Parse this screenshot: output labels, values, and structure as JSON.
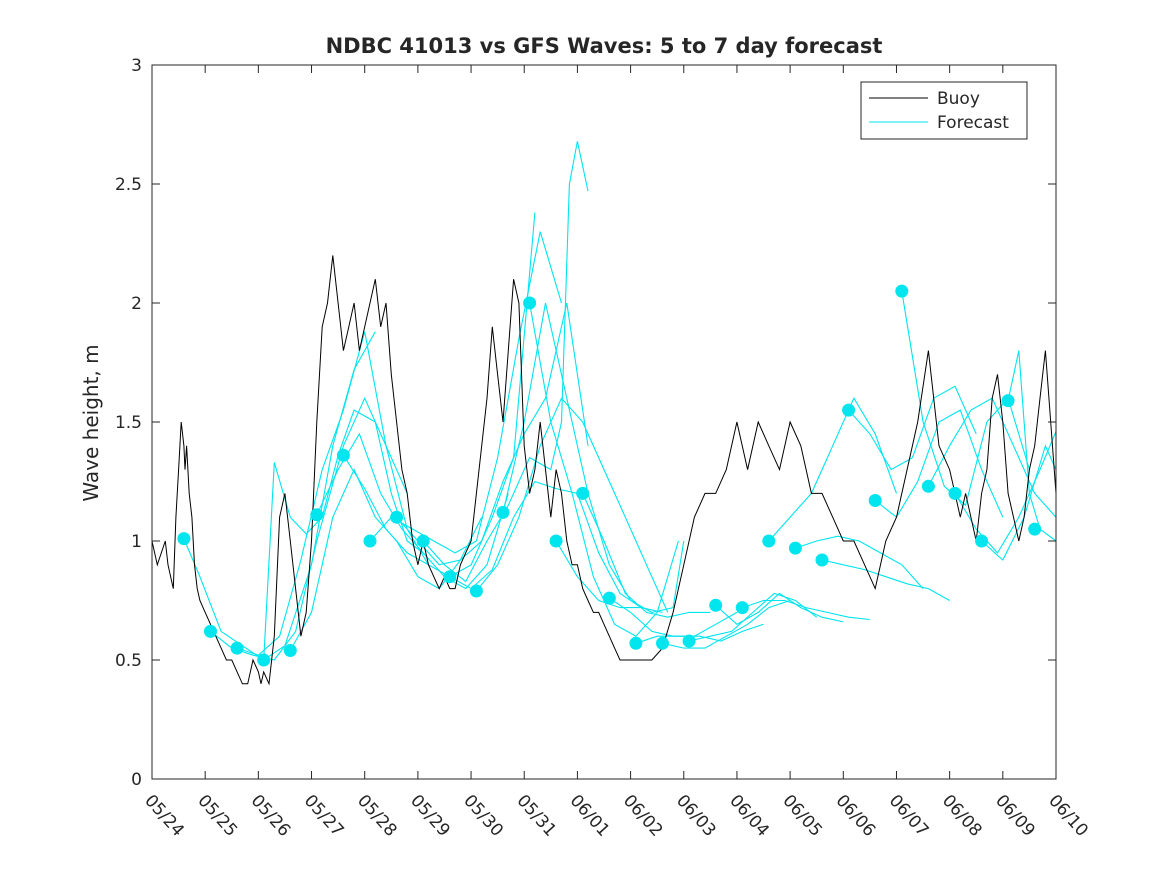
{
  "chart_data": {
    "type": "line",
    "title": "NDBC 41013 vs GFS Waves: 5 to 7 day forecast",
    "ylabel": "Wave height, m",
    "xlabel": "",
    "xlim": [
      "05/24",
      "06/10"
    ],
    "ylim": [
      0,
      3
    ],
    "yticks": [
      0,
      0.5,
      1,
      1.5,
      2,
      2.5,
      3
    ],
    "xtick_labels": [
      "05/24",
      "05/25",
      "05/26",
      "05/27",
      "05/28",
      "05/29",
      "05/30",
      "05/31",
      "06/01",
      "06/02",
      "06/03",
      "06/04",
      "06/05",
      "06/06",
      "06/07",
      "06/08",
      "06/09",
      "06/10"
    ],
    "legend": {
      "position": "top-right",
      "entries": [
        "Buoy",
        "Forecast"
      ]
    },
    "colors": {
      "buoy": "#000000",
      "forecast": "#00e5ee"
    },
    "buoy": {
      "name": "Buoy",
      "x": [
        0.0,
        0.1,
        0.25,
        0.3,
        0.4,
        0.45,
        0.5,
        0.55,
        0.6,
        0.62,
        0.65,
        0.7,
        0.75,
        0.8,
        0.85,
        0.9,
        1.0,
        1.1,
        1.2,
        1.3,
        1.4,
        1.5,
        1.6,
        1.7,
        1.8,
        1.9,
        2.0,
        2.05,
        2.1,
        2.2,
        2.3,
        2.4,
        2.5,
        2.6,
        2.7,
        2.8,
        2.9,
        3.0,
        3.1,
        3.2,
        3.3,
        3.4,
        3.5,
        3.6,
        3.7,
        3.8,
        3.9,
        4.0,
        4.1,
        4.2,
        4.3,
        4.4,
        4.5,
        4.6,
        4.7,
        4.8,
        4.9,
        5.0,
        5.1,
        5.2,
        5.3,
        5.4,
        5.5,
        5.6,
        5.7,
        5.8,
        5.9,
        6.0,
        6.1,
        6.2,
        6.3,
        6.4,
        6.5,
        6.6,
        6.7,
        6.8,
        6.9,
        7.0,
        7.1,
        7.2,
        7.3,
        7.4,
        7.5,
        7.6,
        7.7,
        7.8,
        7.9,
        8.0,
        8.1,
        8.2,
        8.3,
        8.4,
        8.5,
        8.6,
        8.7,
        8.8,
        8.9,
        9.0,
        9.2,
        9.4,
        9.6,
        9.8,
        10.0,
        10.2,
        10.4,
        10.6,
        10.8,
        11.0,
        11.2,
        11.4,
        11.6,
        11.8,
        12.0,
        12.2,
        12.4,
        12.6,
        12.8,
        13.0,
        13.2,
        13.4,
        13.6,
        13.8,
        14.0,
        14.2,
        14.4,
        14.6,
        14.8,
        15.0,
        15.1,
        15.2,
        15.3,
        15.4,
        15.5,
        15.6,
        15.7,
        15.8,
        15.9,
        16.0,
        16.1,
        16.2,
        16.3,
        16.4,
        16.5,
        16.6,
        16.7,
        16.8,
        16.9,
        17.0
      ],
      "y": [
        1.0,
        0.9,
        1.0,
        0.9,
        0.8,
        1.1,
        1.3,
        1.5,
        1.4,
        1.3,
        1.4,
        1.2,
        1.1,
        0.9,
        0.8,
        0.75,
        0.7,
        0.65,
        0.6,
        0.55,
        0.5,
        0.5,
        0.45,
        0.4,
        0.4,
        0.5,
        0.45,
        0.4,
        0.45,
        0.4,
        0.6,
        1.1,
        1.2,
        1.0,
        0.8,
        0.6,
        0.7,
        1.0,
        1.5,
        1.9,
        2.0,
        2.2,
        2.0,
        1.8,
        1.9,
        2.0,
        1.8,
        1.9,
        2.0,
        2.1,
        1.9,
        2.0,
        1.7,
        1.5,
        1.3,
        1.2,
        1.0,
        0.9,
        1.0,
        0.9,
        0.85,
        0.8,
        0.85,
        0.8,
        0.8,
        0.9,
        0.95,
        1.0,
        1.2,
        1.4,
        1.6,
        1.9,
        1.7,
        1.5,
        1.8,
        2.1,
        2.0,
        1.4,
        1.2,
        1.3,
        1.5,
        1.3,
        1.1,
        1.3,
        1.2,
        1.0,
        0.9,
        0.9,
        0.8,
        0.75,
        0.7,
        0.7,
        0.65,
        0.6,
        0.55,
        0.5,
        0.5,
        0.5,
        0.5,
        0.5,
        0.55,
        0.7,
        0.9,
        1.1,
        1.2,
        1.2,
        1.3,
        1.5,
        1.3,
        1.5,
        1.4,
        1.3,
        1.5,
        1.4,
        1.2,
        1.2,
        1.1,
        1.0,
        1.0,
        0.9,
        0.8,
        1.0,
        1.1,
        1.3,
        1.5,
        1.8,
        1.4,
        1.3,
        1.2,
        1.1,
        1.2,
        1.1,
        1.0,
        1.2,
        1.3,
        1.6,
        1.7,
        1.5,
        1.2,
        1.1,
        1.0,
        1.1,
        1.3,
        1.4,
        1.6,
        1.8,
        1.5,
        1.2
      ]
    },
    "forecast_runs": [
      {
        "x": [
          0.6,
          0.9,
          1.3,
          1.7,
          2.1,
          2.5,
          3.0,
          3.4,
          3.8,
          4.2
        ],
        "y": [
          1.01,
          0.85,
          0.62,
          0.56,
          0.5,
          0.56,
          0.9,
          1.4,
          1.72,
          1.88
        ]
      },
      {
        "x": [
          1.1,
          1.5,
          1.9,
          2.3,
          2.7,
          3.1,
          3.6,
          4.0,
          4.4,
          4.8
        ],
        "y": [
          0.62,
          0.55,
          0.52,
          0.5,
          0.62,
          1.0,
          1.4,
          1.6,
          1.4,
          1.2
        ]
      },
      {
        "x": [
          1.6,
          2.0,
          2.4,
          2.8,
          3.2,
          3.6,
          4.0,
          4.4,
          4.8,
          5.2
        ],
        "y": [
          0.55,
          0.52,
          0.6,
          0.92,
          1.3,
          1.55,
          1.88,
          1.4,
          1.05,
          0.9
        ]
      },
      {
        "x": [
          2.1,
          2.3,
          2.6,
          2.9,
          3.2,
          3.5,
          3.8,
          4.2,
          4.5,
          4.8,
          5.1
        ],
        "y": [
          0.5,
          1.33,
          1.1,
          1.03,
          1.1,
          1.36,
          1.55,
          1.5,
          1.2,
          1.0,
          0.95
        ]
      },
      {
        "x": [
          2.6,
          3.0,
          3.4,
          3.8,
          4.2,
          4.6,
          5.0,
          5.4,
          5.8,
          6.2
        ],
        "y": [
          0.54,
          0.7,
          1.1,
          1.3,
          1.1,
          1.0,
          0.85,
          0.8,
          0.92,
          1.1
        ]
      },
      {
        "x": [
          3.1,
          3.5,
          3.9,
          4.3,
          4.7,
          5.1,
          5.5,
          5.9,
          6.3,
          6.7
        ],
        "y": [
          1.11,
          1.3,
          1.45,
          1.2,
          1.05,
          0.95,
          0.85,
          0.8,
          0.9,
          1.2
        ]
      },
      {
        "x": [
          3.6,
          4.0,
          4.4,
          4.8,
          5.2,
          5.6,
          6.0,
          6.4,
          6.8,
          7.2
        ],
        "y": [
          1.36,
          1.22,
          1.05,
          0.95,
          0.9,
          0.85,
          0.9,
          1.1,
          1.35,
          2.38
        ]
      },
      {
        "x": [
          4.1,
          4.5,
          4.9,
          5.3,
          5.7,
          6.1,
          6.5,
          6.9,
          7.3,
          7.7
        ],
        "y": [
          1.0,
          1.1,
          1.05,
          1.0,
          0.95,
          1.0,
          1.35,
          1.85,
          2.3,
          2.0
        ]
      },
      {
        "x": [
          4.6,
          5.0,
          5.4,
          5.8,
          6.2,
          6.6,
          7.0,
          7.4,
          7.8,
          8.2
        ],
        "y": [
          1.1,
          1.0,
          0.9,
          0.92,
          1.0,
          1.25,
          1.45,
          1.6,
          2.0,
          1.4
        ]
      },
      {
        "x": [
          5.1,
          5.5,
          5.9,
          6.3,
          6.7,
          7.1,
          7.5,
          7.7,
          7.85,
          8.0,
          8.2
        ],
        "y": [
          1.0,
          0.9,
          0.83,
          1.0,
          1.15,
          1.35,
          1.3,
          1.5,
          2.5,
          2.68,
          2.47
        ]
      },
      {
        "x": [
          5.6,
          6.0,
          6.4,
          6.8,
          7.2,
          7.6,
          8.0,
          8.4,
          8.8,
          9.2
        ],
        "y": [
          0.85,
          0.8,
          0.88,
          1.1,
          1.25,
          1.22,
          1.2,
          0.95,
          0.78,
          0.72
        ]
      },
      {
        "x": [
          6.1,
          6.5,
          6.9,
          7.3,
          7.7,
          8.1,
          8.5,
          8.9,
          9.3,
          9.7
        ],
        "y": [
          0.79,
          0.9,
          1.1,
          1.4,
          1.6,
          1.5,
          1.3,
          1.1,
          0.9,
          0.7
        ]
      },
      {
        "x": [
          6.6,
          7.0,
          7.4,
          7.8,
          8.2,
          8.6,
          9.0,
          9.4,
          9.8,
          10.0
        ],
        "y": [
          1.12,
          1.5,
          2.0,
          1.6,
          1.2,
          0.9,
          0.75,
          0.7,
          0.72,
          1.0
        ]
      },
      {
        "x": [
          7.1,
          7.5,
          7.9,
          8.3,
          8.7,
          9.1,
          9.5,
          9.9
        ],
        "y": [
          2.0,
          1.5,
          1.2,
          0.85,
          0.65,
          0.6,
          0.7,
          1.0
        ]
      },
      {
        "x": [
          7.6,
          8.0,
          8.4,
          8.8,
          9.2,
          9.6
        ],
        "y": [
          1.0,
          0.85,
          0.75,
          0.72,
          0.72,
          0.7
        ]
      },
      {
        "x": [
          8.1,
          8.5,
          8.9,
          9.3,
          9.7,
          10.1,
          10.5
        ],
        "y": [
          1.2,
          1.0,
          0.78,
          0.7,
          0.68,
          0.7,
          0.7
        ]
      },
      {
        "x": [
          8.6,
          9.0,
          9.4,
          9.8,
          10.2,
          10.6,
          11.0
        ],
        "y": [
          0.76,
          0.7,
          0.62,
          0.6,
          0.6,
          0.65,
          0.7
        ]
      },
      {
        "x": [
          9.1,
          9.5,
          9.9,
          10.3,
          10.7,
          11.1,
          11.5
        ],
        "y": [
          0.57,
          0.6,
          0.6,
          0.6,
          0.58,
          0.62,
          0.65
        ]
      },
      {
        "x": [
          9.6,
          10.0,
          10.4,
          10.8,
          11.2,
          11.6,
          12.0
        ],
        "y": [
          0.57,
          0.55,
          0.55,
          0.6,
          0.65,
          0.72,
          0.75
        ]
      },
      {
        "x": [
          10.1,
          10.5,
          10.9,
          11.3,
          11.7,
          12.1,
          12.5
        ],
        "y": [
          0.58,
          0.6,
          0.62,
          0.7,
          0.78,
          0.75,
          0.68
        ]
      },
      {
        "x": [
          10.6,
          11.0,
          11.4,
          11.8,
          12.2,
          12.6,
          13.0
        ],
        "y": [
          0.73,
          0.65,
          0.7,
          0.78,
          0.72,
          0.68,
          0.66
        ]
      },
      {
        "x": [
          11.1,
          11.5,
          11.9,
          12.3,
          12.7,
          13.1,
          13.5
        ],
        "y": [
          0.72,
          0.75,
          0.75,
          0.72,
          0.7,
          0.68,
          0.67
        ]
      },
      {
        "x": [
          11.6,
          12.0,
          12.4,
          12.8,
          13.2,
          13.6,
          14.0
        ],
        "y": [
          1.0,
          1.1,
          1.2,
          1.4,
          1.6,
          1.45,
          1.2
        ]
      },
      {
        "x": [
          12.1,
          12.5,
          12.9,
          13.3,
          13.7,
          14.1,
          14.5
        ],
        "y": [
          0.97,
          1.0,
          1.02,
          1.0,
          0.95,
          0.9,
          0.8
        ]
      },
      {
        "x": [
          12.6,
          13.0,
          13.4,
          13.8,
          14.2,
          14.6,
          15.0
        ],
        "y": [
          0.92,
          0.9,
          0.88,
          0.85,
          0.82,
          0.8,
          0.75
        ]
      },
      {
        "x": [
          13.1,
          13.5,
          13.9,
          14.3,
          14.7,
          15.1,
          15.5
        ],
        "y": [
          1.55,
          1.45,
          1.3,
          1.35,
          1.6,
          1.65,
          1.45
        ]
      },
      {
        "x": [
          13.6,
          14.0,
          14.4,
          14.8,
          15.2,
          15.6,
          16.0
        ],
        "y": [
          1.17,
          1.1,
          1.25,
          1.5,
          1.55,
          1.3,
          1.1
        ]
      },
      {
        "x": [
          14.1,
          14.5,
          14.9,
          15.3,
          15.7,
          16.1,
          16.5
        ],
        "y": [
          2.05,
          1.5,
          1.23,
          1.15,
          1.5,
          1.6,
          1.3
        ]
      },
      {
        "x": [
          14.6,
          15.0,
          15.4,
          15.8,
          16.2,
          16.6,
          17.0
        ],
        "y": [
          1.23,
          1.4,
          1.55,
          1.6,
          1.4,
          1.2,
          1.1
        ]
      },
      {
        "x": [
          15.1,
          15.5,
          15.9,
          16.3,
          16.7,
          17.0
        ],
        "y": [
          1.2,
          1.05,
          0.95,
          1.1,
          1.3,
          1.46
        ]
      },
      {
        "x": [
          15.6,
          16.0,
          16.4,
          16.8,
          17.0
        ],
        "y": [
          1.0,
          0.92,
          1.1,
          1.4,
          1.3
        ]
      },
      {
        "x": [
          16.1,
          16.3,
          16.5,
          16.7,
          17.0
        ],
        "y": [
          1.59,
          1.8,
          1.2,
          1.05,
          1.0
        ]
      }
    ],
    "forecast_start_points": {
      "x": [
        0.6,
        1.1,
        1.6,
        2.1,
        2.6,
        3.1,
        3.6,
        4.1,
        4.6,
        5.1,
        5.6,
        6.1,
        6.6,
        7.1,
        7.6,
        8.1,
        8.6,
        9.1,
        9.6,
        10.1,
        10.6,
        11.1,
        11.6,
        12.1,
        12.6,
        13.1,
        13.6,
        14.1,
        14.6,
        15.1,
        15.6,
        16.1,
        16.6
      ],
      "y": [
        1.01,
        0.62,
        0.55,
        0.5,
        0.54,
        1.11,
        1.36,
        1.0,
        1.1,
        1.0,
        0.85,
        0.79,
        1.12,
        2.0,
        1.0,
        1.2,
        0.76,
        0.57,
        0.57,
        0.58,
        0.73,
        0.72,
        1.0,
        0.97,
        0.92,
        1.55,
        1.17,
        2.05,
        1.23,
        1.2,
        1.0,
        1.59,
        1.05
      ]
    }
  }
}
